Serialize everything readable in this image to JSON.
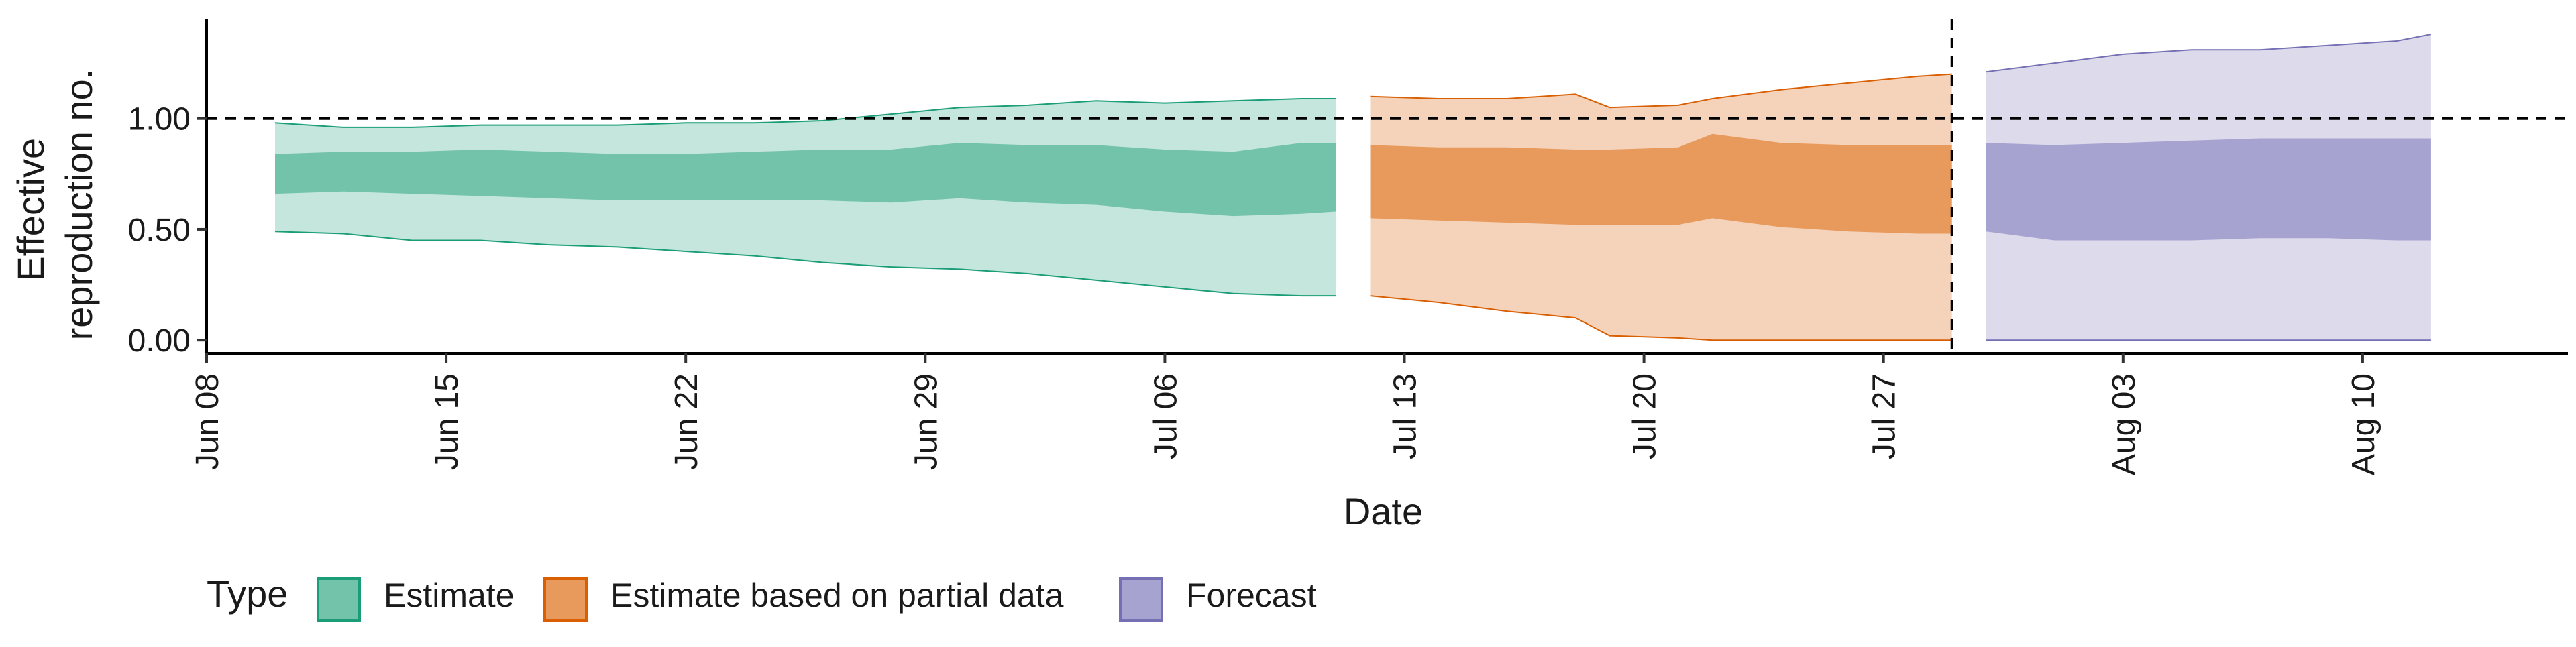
{
  "chart_data": {
    "type": "area",
    "xlabel": "Date",
    "ylabel_lines": [
      "Effective",
      "reproduction no."
    ],
    "y_ticks": [
      0.0,
      0.5,
      1.0
    ],
    "y_tick_labels": [
      "0.00",
      "0.50",
      "1.00"
    ],
    "ylim": [
      -0.06,
      1.45
    ],
    "x_ticks": [
      "2020-06-08",
      "2020-06-15",
      "2020-06-22",
      "2020-06-29",
      "2020-07-06",
      "2020-07-13",
      "2020-07-20",
      "2020-07-27",
      "2020-08-03",
      "2020-08-10"
    ],
    "x_tick_labels": [
      "Jun 08",
      "Jun 15",
      "Jun 22",
      "Jun 29",
      "Jul 06",
      "Jul 13",
      "Jul 20",
      "Jul 27",
      "Aug 03",
      "Aug 10"
    ],
    "xlim": [
      "2020-06-08",
      "2020-08-16"
    ],
    "reference_line_y": 1.0,
    "vertical_line_x": "2020-07-29",
    "grid": false,
    "legend": {
      "title": "Type",
      "placement": "bottom",
      "items": [
        "Estimate",
        "Estimate based on partial data",
        "Forecast"
      ]
    },
    "series": [
      {
        "name": "Estimate",
        "fill_outer": "#c5e6dc",
        "fill_inner": "#72c3a9",
        "edge": "#1b9e77",
        "points": [
          {
            "x": "2020-06-10",
            "lower90": 0.49,
            "lower50": 0.66,
            "upper50": 0.84,
            "upper90": 0.98
          },
          {
            "x": "2020-06-12",
            "lower90": 0.48,
            "lower50": 0.67,
            "upper50": 0.85,
            "upper90": 0.96
          },
          {
            "x": "2020-06-14",
            "lower90": 0.45,
            "lower50": 0.66,
            "upper50": 0.85,
            "upper90": 0.96
          },
          {
            "x": "2020-06-16",
            "lower90": 0.45,
            "lower50": 0.65,
            "upper50": 0.86,
            "upper90": 0.97
          },
          {
            "x": "2020-06-18",
            "lower90": 0.43,
            "lower50": 0.64,
            "upper50": 0.85,
            "upper90": 0.97
          },
          {
            "x": "2020-06-20",
            "lower90": 0.42,
            "lower50": 0.63,
            "upper50": 0.84,
            "upper90": 0.97
          },
          {
            "x": "2020-06-22",
            "lower90": 0.4,
            "lower50": 0.63,
            "upper50": 0.84,
            "upper90": 0.98
          },
          {
            "x": "2020-06-24",
            "lower90": 0.38,
            "lower50": 0.63,
            "upper50": 0.85,
            "upper90": 0.98
          },
          {
            "x": "2020-06-26",
            "lower90": 0.35,
            "lower50": 0.63,
            "upper50": 0.86,
            "upper90": 0.99
          },
          {
            "x": "2020-06-28",
            "lower90": 0.33,
            "lower50": 0.62,
            "upper50": 0.86,
            "upper90": 1.02
          },
          {
            "x": "2020-06-30",
            "lower90": 0.32,
            "lower50": 0.64,
            "upper50": 0.89,
            "upper90": 1.05
          },
          {
            "x": "2020-07-02",
            "lower90": 0.3,
            "lower50": 0.62,
            "upper50": 0.88,
            "upper90": 1.06
          },
          {
            "x": "2020-07-04",
            "lower90": 0.27,
            "lower50": 0.61,
            "upper50": 0.88,
            "upper90": 1.08
          },
          {
            "x": "2020-07-06",
            "lower90": 0.24,
            "lower50": 0.58,
            "upper50": 0.86,
            "upper90": 1.07
          },
          {
            "x": "2020-07-08",
            "lower90": 0.21,
            "lower50": 0.56,
            "upper50": 0.85,
            "upper90": 1.08
          },
          {
            "x": "2020-07-10",
            "lower90": 0.2,
            "lower50": 0.57,
            "upper50": 0.89,
            "upper90": 1.09
          },
          {
            "x": "2020-07-11",
            "lower90": 0.2,
            "lower50": 0.58,
            "upper50": 0.89,
            "upper90": 1.09
          }
        ]
      },
      {
        "name": "Estimate based on partial data",
        "fill_outer": "#f5d3bb",
        "fill_inner": "#e89a5d",
        "edge": "#d95f02",
        "points": [
          {
            "x": "2020-07-12",
            "lower90": 0.2,
            "lower50": 0.55,
            "upper50": 0.88,
            "upper90": 1.1
          },
          {
            "x": "2020-07-14",
            "lower90": 0.17,
            "lower50": 0.54,
            "upper50": 0.87,
            "upper90": 1.09
          },
          {
            "x": "2020-07-16",
            "lower90": 0.13,
            "lower50": 0.53,
            "upper50": 0.87,
            "upper90": 1.09
          },
          {
            "x": "2020-07-18",
            "lower90": 0.1,
            "lower50": 0.52,
            "upper50": 0.86,
            "upper90": 1.11
          },
          {
            "x": "2020-07-19",
            "lower90": 0.02,
            "lower50": 0.52,
            "upper50": 0.86,
            "upper90": 1.05
          },
          {
            "x": "2020-07-21",
            "lower90": 0.01,
            "lower50": 0.52,
            "upper50": 0.87,
            "upper90": 1.06
          },
          {
            "x": "2020-07-22",
            "lower90": 0.0,
            "lower50": 0.55,
            "upper50": 0.93,
            "upper90": 1.09
          },
          {
            "x": "2020-07-24",
            "lower90": 0.0,
            "lower50": 0.51,
            "upper50": 0.89,
            "upper90": 1.13
          },
          {
            "x": "2020-07-26",
            "lower90": 0.0,
            "lower50": 0.49,
            "upper50": 0.88,
            "upper90": 1.16
          },
          {
            "x": "2020-07-28",
            "lower90": 0.0,
            "lower50": 0.48,
            "upper50": 0.88,
            "upper90": 1.19
          },
          {
            "x": "2020-07-29",
            "lower90": 0.0,
            "lower50": 0.48,
            "upper50": 0.88,
            "upper90": 1.2
          }
        ]
      },
      {
        "name": "Forecast",
        "fill_outer": "#dcdaeb",
        "fill_inner": "#a7a3d1",
        "edge": "#7570b3",
        "points": [
          {
            "x": "2020-07-30",
            "lower90": 0.0,
            "lower50": 0.49,
            "upper50": 0.89,
            "upper90": 1.21
          },
          {
            "x": "2020-08-01",
            "lower90": 0.0,
            "lower50": 0.45,
            "upper50": 0.88,
            "upper90": 1.25
          },
          {
            "x": "2020-08-03",
            "lower90": 0.0,
            "lower50": 0.45,
            "upper50": 0.89,
            "upper90": 1.29
          },
          {
            "x": "2020-08-05",
            "lower90": 0.0,
            "lower50": 0.45,
            "upper50": 0.9,
            "upper90": 1.31
          },
          {
            "x": "2020-08-07",
            "lower90": 0.0,
            "lower50": 0.46,
            "upper50": 0.91,
            "upper90": 1.31
          },
          {
            "x": "2020-08-09",
            "lower90": 0.0,
            "lower50": 0.46,
            "upper50": 0.91,
            "upper90": 1.33
          },
          {
            "x": "2020-08-11",
            "lower90": 0.0,
            "lower50": 0.45,
            "upper50": 0.91,
            "upper90": 1.35
          },
          {
            "x": "2020-08-12",
            "lower90": 0.0,
            "lower50": 0.45,
            "upper50": 0.91,
            "upper90": 1.38
          }
        ]
      }
    ]
  }
}
